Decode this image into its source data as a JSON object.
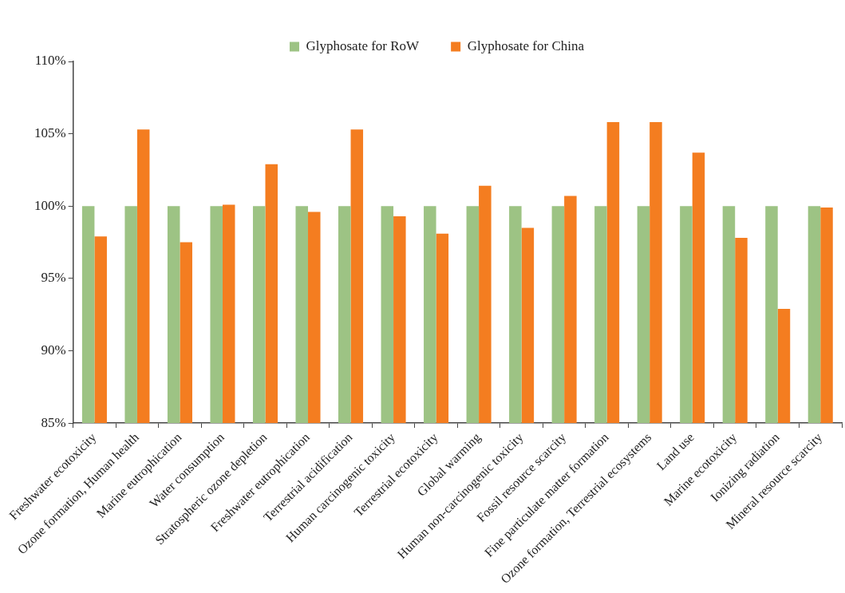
{
  "chart_data": {
    "type": "bar",
    "categories": [
      "Freshwater ecotoxicity",
      "Ozone formation, Human health",
      "Marine eutrophication",
      "Water consumption",
      "Stratospheric ozone depletion",
      "Freshwater eutrophication",
      "Terrestrial acidification",
      "Human carcinogenic toxicity",
      "Terrestrial ecotoxicity",
      "Global warming",
      "Human non-carcinogenic toxicity",
      "Fossil resource scarcity",
      "Fine particulate matter formation",
      "Ozone formation, Terrestrial ecosystems",
      "Land use",
      "Marine ecotoxicity",
      "Ionizing radiation",
      "Mineral resource scarcity"
    ],
    "series": [
      {
        "name": "Glyphosate for RoW",
        "color": "#9dc384",
        "values": [
          100,
          100,
          100,
          100,
          100,
          100,
          100,
          100,
          100,
          100,
          100,
          100,
          100,
          100,
          100,
          100,
          100,
          100
        ]
      },
      {
        "name": "Glyphosate for China",
        "color": "#f47d20",
        "values": [
          97.9,
          105.3,
          97.5,
          100.1,
          102.9,
          99.6,
          105.3,
          99.3,
          98.1,
          101.4,
          98.5,
          100.7,
          105.8,
          105.8,
          103.7,
          97.8,
          92.9,
          99.9
        ]
      }
    ],
    "ylim": [
      85,
      110
    ],
    "yticks": [
      {
        "value": 85,
        "label": "85%"
      },
      {
        "value": 90,
        "label": "90%"
      },
      {
        "value": 95,
        "label": "95%"
      },
      {
        "value": 100,
        "label": "100%"
      },
      {
        "value": 105,
        "label": "105%"
      },
      {
        "value": 110,
        "label": "110%"
      }
    ],
    "grid": false,
    "legend": "top"
  }
}
